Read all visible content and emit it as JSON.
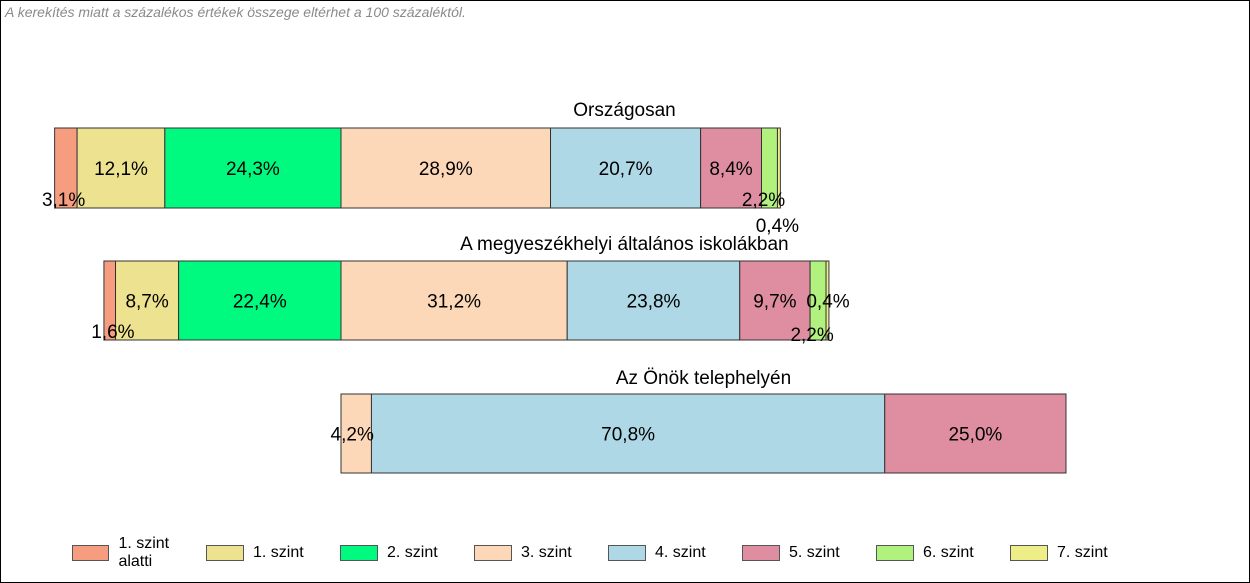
{
  "note": "A kerekítés miatt a  százalékos értékek összege eltérhet a 100 százaléktól.",
  "chart_data": {
    "type": "bar",
    "orientation": "horizontal-stacked",
    "categories": [
      "1. szint alatti",
      "1. szint",
      "2. szint",
      "3. szint",
      "4. szint",
      "5. szint",
      "6. szint",
      "7. szint"
    ],
    "colors": [
      "#f79d7f",
      "#ede28f",
      "#00fa7f",
      "#fdd8b8",
      "#aed8e6",
      "#de8ea0",
      "#b1f27f",
      "#eeee88"
    ],
    "series": [
      {
        "name": "Országosan",
        "values": [
          3.1,
          12.1,
          24.3,
          28.9,
          20.7,
          8.4,
          2.2,
          0.4
        ],
        "labels": [
          "3,1%",
          "12,1%",
          "24,3%",
          "28,9%",
          "20,7%",
          "8,4%",
          "2,2%",
          "0,4%"
        ]
      },
      {
        "name": "A megyeszékhelyi általános iskolákban",
        "values": [
          1.6,
          8.7,
          22.4,
          31.2,
          23.8,
          9.7,
          2.2,
          0.4
        ],
        "labels": [
          "1,6%",
          "8,7%",
          "22,4%",
          "31,2%",
          "23,8%",
          "9,7%",
          "2,2%",
          "0,4%"
        ]
      },
      {
        "name": "Az Önök telephelyén",
        "values": [
          0,
          0,
          0,
          4.2,
          70.8,
          25.0,
          0,
          0
        ],
        "labels": [
          "",
          "",
          "",
          "4,2%",
          "70,8%",
          "25,0%",
          "",
          ""
        ]
      }
    ]
  }
}
